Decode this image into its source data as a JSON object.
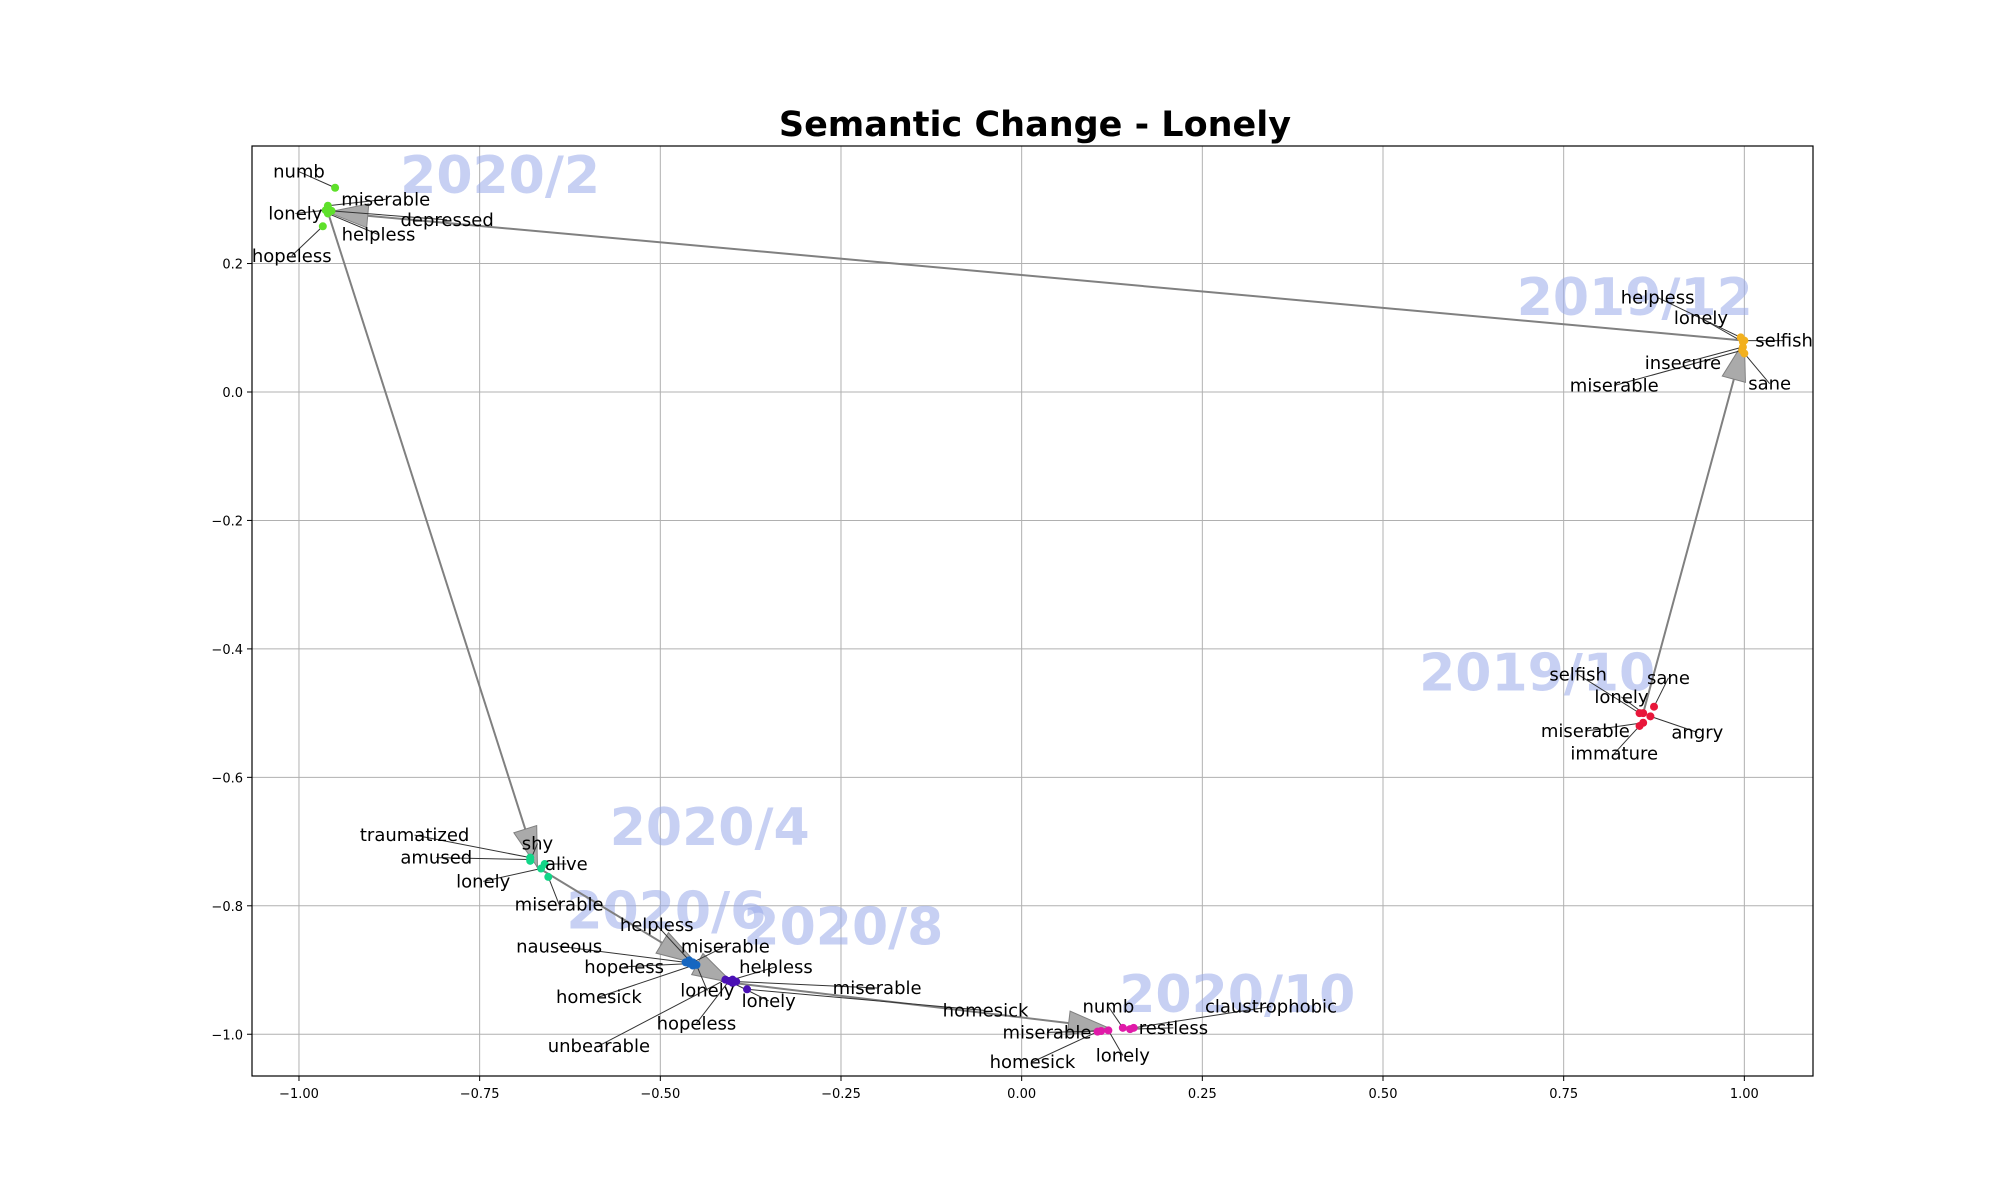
{
  "chart_data": {
    "type": "scatter",
    "title": "Semantic Change - Lonely",
    "xlim": [
      -1.065,
      1.095
    ],
    "ylim": [
      -1.065,
      0.383
    ],
    "xticks": [
      -1.0,
      -0.75,
      -0.5,
      -0.25,
      0.0,
      0.25,
      0.5,
      0.75,
      1.0
    ],
    "xtick_labels": [
      "−1.00",
      "−0.75",
      "−0.50",
      "−0.25",
      "0.00",
      "0.25",
      "0.50",
      "0.75",
      "1.00"
    ],
    "yticks": [
      -1.0,
      -0.8,
      -0.6,
      -0.4,
      -0.2,
      0.0,
      0.2
    ],
    "ytick_labels": [
      "−1.0",
      "−0.8",
      "−0.6",
      "−0.4",
      "−0.2",
      "0.0",
      "0.2"
    ],
    "grid": true,
    "trajectory": [
      [
        0.86,
        -0.5
      ],
      [
        1.0,
        0.08
      ],
      [
        -0.96,
        0.28
      ],
      [
        -0.67,
        -0.74
      ],
      [
        -0.45,
        -0.89
      ],
      [
        -0.4,
        -0.92
      ],
      [
        0.12,
        -0.99
      ]
    ],
    "groups": [
      {
        "period": "2019/10",
        "color": "#e8173a",
        "label_pos": [
          0.55,
          -0.465
        ],
        "words": [
          {
            "word": "selfish",
            "x": 0.855,
            "y": -0.5,
            "lx": 0.77,
            "ly": -0.44
          },
          {
            "word": "lonely",
            "x": 0.86,
            "y": -0.5,
            "lx": 0.83,
            "ly": -0.475
          },
          {
            "word": "sane",
            "x": 0.875,
            "y": -0.49,
            "lx": 0.895,
            "ly": -0.445
          },
          {
            "word": "angry",
            "x": 0.87,
            "y": -0.505,
            "lx": 0.935,
            "ly": -0.53
          },
          {
            "word": "miserable",
            "x": 0.86,
            "y": -0.515,
            "lx": 0.78,
            "ly": -0.528
          },
          {
            "word": "immature",
            "x": 0.855,
            "y": -0.52,
            "lx": 0.82,
            "ly": -0.563
          }
        ]
      },
      {
        "period": "2019/12",
        "color": "#f2b01e",
        "label_pos": [
          0.685,
          0.12
        ],
        "words": [
          {
            "word": "helpless",
            "x": 0.995,
            "y": 0.085,
            "lx": 0.88,
            "ly": 0.147
          },
          {
            "word": "lonely",
            "x": 0.998,
            "y": 0.078,
            "lx": 0.94,
            "ly": 0.115
          },
          {
            "word": "selfish",
            "x": 1.0,
            "y": 0.08,
            "lx": 1.055,
            "ly": 0.08
          },
          {
            "word": "insecure",
            "x": 0.998,
            "y": 0.07,
            "lx": 0.915,
            "ly": 0.045
          },
          {
            "word": "miserable",
            "x": 0.997,
            "y": 0.065,
            "lx": 0.82,
            "ly": 0.01
          },
          {
            "word": "sane",
            "x": 1.0,
            "y": 0.06,
            "lx": 1.035,
            "ly": 0.013
          }
        ]
      },
      {
        "period": "2020/2",
        "color": "#5ee02a",
        "label_pos": [
          -0.86,
          0.31
        ],
        "words": [
          {
            "word": "numb",
            "x": -0.95,
            "y": 0.318,
            "lx": -1.0,
            "ly": 0.343
          },
          {
            "word": "miserable",
            "x": -0.96,
            "y": 0.29,
            "lx": -0.88,
            "ly": 0.3
          },
          {
            "word": "lonely",
            "x": -0.963,
            "y": 0.283,
            "lx": -1.005,
            "ly": 0.278
          },
          {
            "word": "depressed",
            "x": -0.955,
            "y": 0.282,
            "lx": -0.795,
            "ly": 0.268
          },
          {
            "word": "helpless",
            "x": -0.96,
            "y": 0.278,
            "lx": -0.89,
            "ly": 0.245
          },
          {
            "word": "hopeless",
            "x": -0.967,
            "y": 0.258,
            "lx": -1.01,
            "ly": 0.212
          }
        ]
      },
      {
        "period": "2020/4",
        "color": "#12d688",
        "label_pos": [
          -0.57,
          -0.705
        ],
        "words": [
          {
            "word": "traumatized",
            "x": -0.68,
            "y": -0.725,
            "lx": -0.84,
            "ly": -0.69
          },
          {
            "word": "shy",
            "x": -0.68,
            "y": -0.73,
            "lx": -0.67,
            "ly": -0.703
          },
          {
            "word": "amused",
            "x": -0.68,
            "y": -0.728,
            "lx": -0.81,
            "ly": -0.725
          },
          {
            "word": "alive",
            "x": -0.66,
            "y": -0.735,
            "lx": -0.63,
            "ly": -0.735
          },
          {
            "word": "lonely",
            "x": -0.665,
            "y": -0.742,
            "lx": -0.745,
            "ly": -0.762
          },
          {
            "word": "miserable",
            "x": -0.655,
            "y": -0.755,
            "lx": -0.64,
            "ly": -0.798
          }
        ]
      },
      {
        "period": "2020/6",
        "color": "#1666c0",
        "label_pos": [
          -0.63,
          -0.835
        ],
        "words": [
          {
            "word": "helpless",
            "x": -0.46,
            "y": -0.885,
            "lx": -0.505,
            "ly": -0.83
          },
          {
            "word": "miserable",
            "x": -0.455,
            "y": -0.888,
            "lx": -0.41,
            "ly": -0.863
          },
          {
            "word": "nauseous",
            "x": -0.465,
            "y": -0.888,
            "lx": -0.64,
            "ly": -0.863
          },
          {
            "word": "hopeless",
            "x": -0.46,
            "y": -0.89,
            "lx": -0.55,
            "ly": -0.895
          },
          {
            "word": "homesick",
            "x": -0.455,
            "y": -0.893,
            "lx": -0.585,
            "ly": -0.942
          },
          {
            "word": "lonely",
            "x": -0.45,
            "y": -0.892,
            "lx": -0.435,
            "ly": -0.932
          }
        ]
      },
      {
        "period": "2020/8",
        "color": "#4a10b4",
        "label_pos": [
          -0.385,
          -0.86
        ],
        "words": [
          {
            "word": "helpless",
            "x": -0.4,
            "y": -0.915,
            "lx": -0.34,
            "ly": -0.895
          },
          {
            "word": "miserable",
            "x": -0.395,
            "y": -0.918,
            "lx": -0.2,
            "ly": -0.928
          },
          {
            "word": "lonely",
            "x": -0.4,
            "y": -0.92,
            "lx": -0.35,
            "ly": -0.948
          },
          {
            "word": "hopeless",
            "x": -0.405,
            "y": -0.917,
            "lx": -0.45,
            "ly": -0.983
          },
          {
            "word": "unbearable",
            "x": -0.41,
            "y": -0.915,
            "lx": -0.585,
            "ly": -1.018
          },
          {
            "word": "homesick",
            "x": -0.38,
            "y": -0.93,
            "lx": -0.05,
            "ly": -0.963
          }
        ]
      },
      {
        "period": "2020/10",
        "color": "#e01aa8",
        "label_pos": [
          0.135,
          -0.965
        ],
        "words": [
          {
            "word": "numb",
            "x": 0.14,
            "y": -0.99,
            "lx": 0.12,
            "ly": -0.957
          },
          {
            "word": "claustrophobic",
            "x": 0.155,
            "y": -0.99,
            "lx": 0.345,
            "ly": -0.957
          },
          {
            "word": "restless",
            "x": 0.15,
            "y": -0.992,
            "lx": 0.21,
            "ly": -0.99
          },
          {
            "word": "miserable",
            "x": 0.11,
            "y": -0.995,
            "lx": 0.035,
            "ly": -0.997
          },
          {
            "word": "lonely",
            "x": 0.12,
            "y": -0.994,
            "lx": 0.14,
            "ly": -1.033
          },
          {
            "word": "homesick",
            "x": 0.105,
            "y": -0.996,
            "lx": 0.015,
            "ly": -1.043
          }
        ]
      }
    ]
  }
}
